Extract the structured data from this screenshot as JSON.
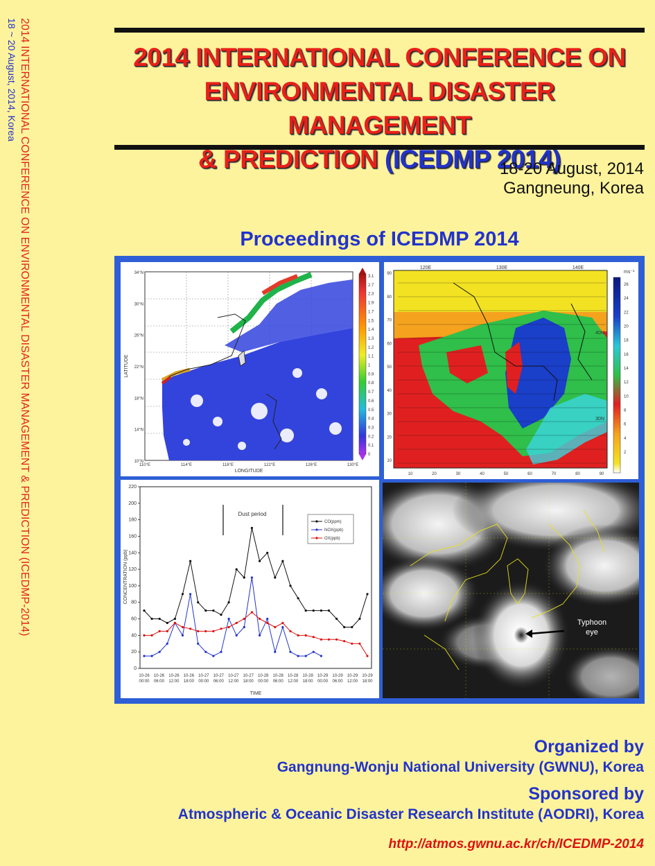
{
  "spine": {
    "line1": "2014 INTERNATIONAL CONFERENCE ON ENVIRONMENTAL DISASTER MANAGEMENT & PREDICTION (ICEDMP-2014)",
    "line2": "18 ~ 20 August, 2014, Korea"
  },
  "title": {
    "line1": "2014 INTERNATIONAL CONFERENCE ON",
    "line2": "ENVIRONMENTAL DISASTER MANAGEMENT",
    "line3_prefix": "& PREDICTION ",
    "line3_acronym": "(ICEDMP 2014)"
  },
  "event": {
    "dates": "18-20 August, 2014",
    "location": "Gangneung, Korea"
  },
  "proceedings_title": "Proceedings of ICEDMP 2014",
  "figures": {
    "map_left": {
      "xlabel": "LONGITUDE",
      "ylabel": "LATITUDE",
      "lon_ticks": [
        "110°E",
        "114°E",
        "118°E",
        "122°E",
        "126°E",
        "130°E"
      ],
      "lat_ticks": [
        "34°N",
        "30°N",
        "26°N",
        "22°N",
        "18°N",
        "14°N",
        "10°N"
      ],
      "colorbar_ticks": [
        "3.1",
        "2.7",
        "2.3",
        "1.9",
        "1.7",
        "1.5",
        "1.4",
        "1.3",
        "1.2",
        "1.1",
        "1",
        "0.9",
        "0.8",
        "0.7",
        "0.6",
        "0.5",
        "0.4",
        "0.3",
        "0.2",
        "0.1",
        "0"
      ]
    },
    "map_right": {
      "top_ticks": [
        "120E",
        "130E",
        "140E"
      ],
      "bottom_ticks": [
        "10",
        "20",
        "30",
        "40",
        "50",
        "60",
        "70",
        "80",
        "90"
      ],
      "left_ticks": [
        "90",
        "80",
        "70",
        "60",
        "50",
        "40",
        "30",
        "20",
        "10"
      ],
      "lat_labels": [
        "40N",
        "30N"
      ],
      "unit": "ms⁻¹",
      "colorbar_ticks": [
        "26",
        "24",
        "22",
        "20",
        "18",
        "16",
        "14",
        "12",
        "10",
        "8",
        "6",
        "4",
        "2"
      ]
    },
    "dust_chart": {
      "dust_period_label": "Dust period",
      "xlabel": "TIME",
      "ylabel": "CONCENTRATION (ppb)",
      "y_ticks": [
        "220",
        "200",
        "180",
        "160",
        "140",
        "120",
        "100",
        "80",
        "60",
        "40",
        "20",
        "0"
      ],
      "x_ticks": [
        "10-26\n00:00",
        "10-26\n06:00",
        "10-26\n12:00",
        "10-26\n18:00",
        "10-27\n00:00",
        "10-27\n06:00",
        "10-27\n12:00",
        "10-27\n18:00",
        "10-28\n00:00",
        "10-28\n06:00",
        "10-28\n12:00",
        "10-28\n18:00",
        "10-29\n00:00",
        "10-29\n06:00",
        "10-29\n12:00",
        "10-29\n18:00"
      ],
      "legend": [
        "CO(ppm)",
        "NOX(ppb)",
        "OX(ppb)"
      ]
    },
    "satellite": {
      "label_line1": "Typhoon",
      "label_line2": "eye"
    }
  },
  "chart_data": {
    "type": "line",
    "title": "",
    "xlabel": "TIME",
    "ylabel": "CONCENTRATION (ppb)",
    "ylim": [
      0,
      220
    ],
    "x": [
      "10-26 00:00",
      "10-26 03:00",
      "10-26 06:00",
      "10-26 09:00",
      "10-26 12:00",
      "10-26 15:00",
      "10-26 18:00",
      "10-26 21:00",
      "10-27 00:00",
      "10-27 03:00",
      "10-27 06:00",
      "10-27 09:00",
      "10-27 12:00",
      "10-27 15:00",
      "10-27 18:00",
      "10-27 21:00",
      "10-28 00:00",
      "10-28 03:00",
      "10-28 06:00",
      "10-28 09:00",
      "10-28 12:00",
      "10-28 15:00",
      "10-28 18:00",
      "10-28 21:00",
      "10-29 00:00",
      "10-29 03:00",
      "10-29 06:00",
      "10-29 09:00",
      "10-29 12:00",
      "10-29 15:00"
    ],
    "series": [
      {
        "name": "CO(ppm)",
        "color": "#111111",
        "values": [
          70,
          60,
          60,
          55,
          60,
          90,
          130,
          80,
          70,
          70,
          65,
          80,
          120,
          110,
          170,
          130,
          140,
          110,
          130,
          100,
          85,
          70,
          70,
          70,
          70,
          60,
          50,
          50,
          60,
          90
        ]
      },
      {
        "name": "NOX(ppb)",
        "color": "#2233cc",
        "values": [
          15,
          15,
          20,
          30,
          55,
          40,
          90,
          30,
          20,
          15,
          20,
          60,
          40,
          50,
          110,
          40,
          60,
          20,
          50,
          20,
          15,
          15,
          20,
          15,
          null,
          null,
          null,
          null,
          null,
          null
        ]
      },
      {
        "name": "OX(ppb)",
        "color": "#dd1111",
        "values": [
          40,
          40,
          45,
          45,
          55,
          50,
          48,
          45,
          45,
          45,
          48,
          50,
          55,
          60,
          68,
          60,
          55,
          50,
          55,
          45,
          40,
          40,
          38,
          35,
          35,
          35,
          33,
          30,
          30,
          15
        ]
      }
    ],
    "legend_position": "top-right",
    "annotation": "Dust period"
  },
  "footer": {
    "organized_label": "Organized by",
    "organizer": "Gangnung-Wonju National University (GWNU), Korea",
    "sponsored_label": "Sponsored by",
    "sponsor": "Atmospheric & Oceanic Disaster Research Institute (AODRI), Korea",
    "url": "http://atmos.gwnu.ac.kr/ch/ICEDMP-2014"
  }
}
